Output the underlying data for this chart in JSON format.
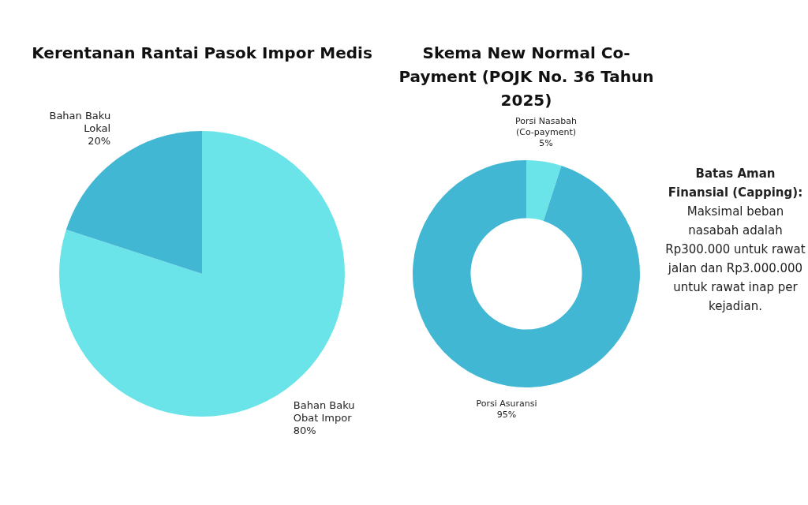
{
  "chart_data": [
    {
      "type": "pie",
      "title": "Kerentanan Rantai Pasok Impor Medis",
      "categories": [
        "Bahan Baku Obat Impor",
        "Bahan Baku Lokal"
      ],
      "values": [
        80,
        20
      ],
      "colors": [
        "#6ae4e8",
        "#42b7d4"
      ],
      "value_labels": [
        "80%",
        "20%"
      ]
    },
    {
      "type": "donut",
      "title": "Skema New Normal Co-Payment (POJK No. 36 Tahun 2025)",
      "categories": [
        "Porsi Nasabah (Co-payment)",
        "Porsi Asuransi"
      ],
      "values": [
        5,
        95
      ],
      "colors": [
        "#6ae4e8",
        "#42b7d4"
      ],
      "value_labels": [
        "5%",
        "95%"
      ]
    },
    {
      "type": "other",
      "title": "Batas Aman Finansial (Capping):",
      "annotations": [
        "Maksimal beban nasabah adalah Rp300.000 untuk rawat jalan dan Rp3.000.000 untuk rawat inap per kejadian."
      ]
    }
  ]
}
